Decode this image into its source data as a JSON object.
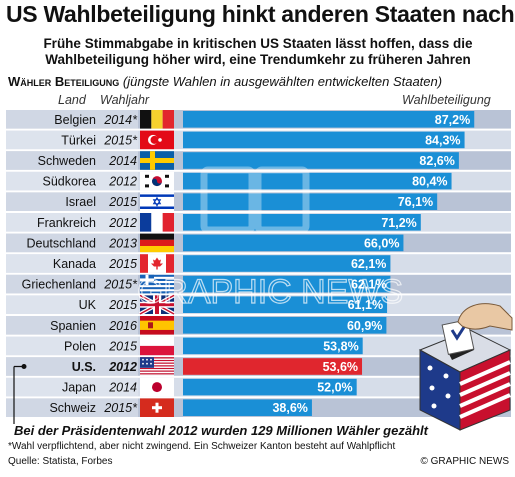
{
  "title": "US Wahlbeteiligung hinkt anderen Staaten nach",
  "subtitle": "Frühe Stimmabgabe in kritischen US Staaten lässt hoffen, dass die Wahlbeteiligung höher wird, eine Trendumkehr zu früheren Jahren",
  "section_lead": "Wähler Beteiligung",
  "section_rest": "(jüngste Wahlen in ausgewählten entwickelten Staaten)",
  "headers": {
    "country": "Land",
    "year": "Wahljahr",
    "value": "Wahlbeteiligung"
  },
  "note": "Bei der Präsidentenwahl 2012 wurden 129 Millionen Wähler gezählt",
  "footnote": "*Wahl verpflichtend, aber nicht zwingend. Ein Schweizer Kanton besteht auf Wahlpflicht",
  "source": "Quelle: Statista, Forbes",
  "credit": "© GRAPHIC NEWS",
  "watermark": "GRAPHIC NEWS",
  "colors": {
    "bar": "#1a8fd6",
    "highlight_bar": "#e0262e",
    "row_dark": "#b9c3d6",
    "row_light": "#d6dde9",
    "label_cell": "#e4e8f0"
  },
  "chart_data": {
    "type": "bar",
    "orientation": "horizontal",
    "title": "US Wahlbeteiligung hinkt anderen Staaten nach",
    "xlabel": "Wahlbeteiligung",
    "unit": "%",
    "xlim": [
      0,
      100
    ],
    "categories": [
      "Belgien",
      "Türkei",
      "Schweden",
      "Südkorea",
      "Israel",
      "Frankreich",
      "Deutschland",
      "Kanada",
      "Griechenland",
      "UK",
      "Spanien",
      "Polen",
      "U.S.",
      "Japan",
      "Schweiz"
    ],
    "years": [
      "2014*",
      "2015*",
      "2014",
      "2012",
      "2015",
      "2012",
      "2013",
      "2015",
      "2015*",
      "2015",
      "2016",
      "2015",
      "2012",
      "2014",
      "2015*"
    ],
    "value_labels": [
      "87,2%",
      "84,3%",
      "82,6%",
      "80,4%",
      "76,1%",
      "71,2%",
      "66,0%",
      "62,1%",
      "62,1%",
      "61,1%",
      "60,9%",
      "53,8%",
      "53,6%",
      "52,0%",
      "38,6%"
    ],
    "values": [
      87.2,
      84.3,
      82.6,
      80.4,
      76.1,
      71.2,
      66.0,
      62.1,
      62.1,
      61.1,
      60.9,
      53.8,
      53.6,
      52.0,
      38.6
    ],
    "flags": [
      "flag-belgium",
      "flag-turkey",
      "flag-sweden",
      "flag-south-korea",
      "flag-israel",
      "flag-france",
      "flag-germany",
      "flag-canada",
      "flag-greece",
      "flag-uk",
      "flag-spain",
      "flag-poland",
      "flag-usa",
      "flag-japan",
      "flag-switzerland"
    ],
    "highlight": "U.S."
  }
}
